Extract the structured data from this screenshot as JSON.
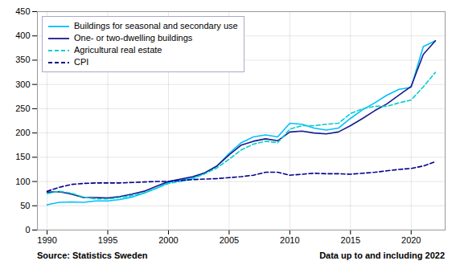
{
  "chart_data": {
    "type": "line",
    "x": [
      1990,
      1991,
      1992,
      1993,
      1994,
      1995,
      1996,
      1997,
      1998,
      1999,
      2000,
      2001,
      2002,
      2003,
      2004,
      2005,
      2006,
      2007,
      2008,
      2009,
      2010,
      2011,
      2012,
      2013,
      2014,
      2015,
      2016,
      2017,
      2018,
      2019,
      2020,
      2021,
      2022
    ],
    "series": [
      {
        "name": "Buildings for seasonal and secondary use",
        "color": "#00BFFF",
        "line_style": "solid",
        "values": [
          52,
          57,
          58,
          57,
          60,
          60,
          63,
          68,
          76,
          86,
          98,
          103,
          108,
          118,
          132,
          158,
          180,
          192,
          196,
          192,
          220,
          218,
          210,
          206,
          210,
          230,
          248,
          262,
          278,
          290,
          294,
          378,
          390
        ]
      },
      {
        "name": "One- or two-dwelling buildings",
        "color": "#1a1a8c",
        "line_style": "solid",
        "values": [
          78,
          79,
          74,
          67,
          67,
          66,
          69,
          74,
          80,
          90,
          100,
          105,
          110,
          118,
          132,
          155,
          175,
          183,
          188,
          184,
          202,
          204,
          200,
          198,
          202,
          215,
          230,
          246,
          260,
          278,
          296,
          362,
          390
        ]
      },
      {
        "name": "Agricultural real estate",
        "color": "#00CFCF",
        "line_style": "dashed",
        "values": [
          75,
          80,
          76,
          68,
          64,
          64,
          67,
          71,
          77,
          86,
          96,
          100,
          106,
          116,
          128,
          146,
          165,
          177,
          183,
          180,
          208,
          215,
          215,
          218,
          220,
          240,
          250,
          255,
          255,
          262,
          268,
          295,
          325
        ]
      },
      {
        "name": "CPI",
        "color": "#00008B",
        "line_style": "dashed",
        "values": [
          80,
          88,
          94,
          96,
          97,
          97,
          97,
          98,
          99,
          100,
          100,
          102,
          104,
          105,
          106,
          108,
          110,
          113,
          119,
          119,
          113,
          115,
          117,
          116,
          116,
          115,
          117,
          119,
          122,
          125,
          127,
          132,
          141
        ]
      }
    ],
    "xlim": [
      1989.2,
      2022.8
    ],
    "xticks": [
      1990,
      1995,
      2000,
      2005,
      2010,
      2015,
      2020
    ],
    "ylim": [
      0,
      450
    ],
    "yticks": [
      0,
      50,
      100,
      150,
      200,
      250,
      300,
      350,
      400,
      450
    ],
    "grid": true,
    "legend": "upper left",
    "annotations": [
      "Source: Statistics Sweden",
      "Data up to and including 2022"
    ]
  }
}
